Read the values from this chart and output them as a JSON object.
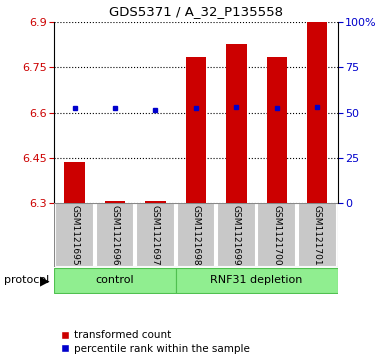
{
  "title": "GDS5371 / A_32_P135558",
  "samples": [
    "GSM1121695",
    "GSM1121696",
    "GSM1121697",
    "GSM1121698",
    "GSM1121699",
    "GSM1121700",
    "GSM1121701"
  ],
  "red_values": [
    6.435,
    6.308,
    6.308,
    6.785,
    6.825,
    6.785,
    6.9
  ],
  "blue_values": [
    6.615,
    6.615,
    6.608,
    6.615,
    6.617,
    6.615,
    6.618
  ],
  "ymin": 6.3,
  "ymax": 6.9,
  "yticks_red": [
    6.3,
    6.45,
    6.6,
    6.75,
    6.9
  ],
  "yticks_blue": [
    0,
    25,
    50,
    75,
    100
  ],
  "ytick_labels_blue": [
    "0",
    "25",
    "50",
    "75",
    "100%"
  ],
  "control_indices": [
    0,
    1,
    2
  ],
  "rnf31_indices": [
    3,
    4,
    5,
    6
  ],
  "bar_color": "#cc0000",
  "dot_color": "#0000cc",
  "control_label": "control",
  "rnf31_label": "RNF31 depletion",
  "protocol_label": "protocol",
  "legend_red": "transformed count",
  "legend_blue": "percentile rank within the sample",
  "label_box_color": "#c8c8c8",
  "group_box_color": "#90ee90",
  "group_box_edge_color": "#50c050",
  "bar_width": 0.5,
  "figsize": [
    3.88,
    3.63
  ],
  "dpi": 100
}
